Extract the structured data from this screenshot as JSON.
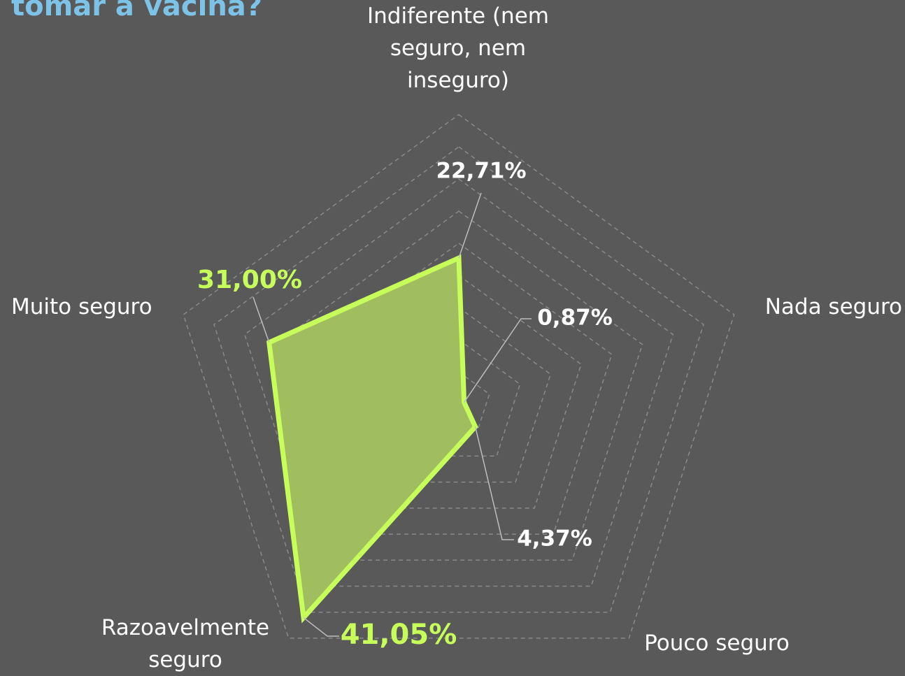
{
  "chart_data": {
    "type": "radar",
    "title": "tomar a vacina?",
    "categories": [
      "Indiferente (nem seguro, nem inseguro)",
      "Nada seguro",
      "Pouco seguro",
      "Razoavelmente seguro",
      "Muito seguro"
    ],
    "values": [
      22.71,
      0.87,
      4.37,
      41.05,
      31.0
    ],
    "value_labels": [
      "22,71%",
      "0,87%",
      "4,37%",
      "41,05%",
      "31,00%"
    ],
    "color": "#c6ff5a",
    "rlim": [
      0,
      45
    ],
    "rticks": [
      5,
      10,
      15,
      20,
      25,
      30,
      35,
      40,
      45
    ],
    "grid": true
  }
}
